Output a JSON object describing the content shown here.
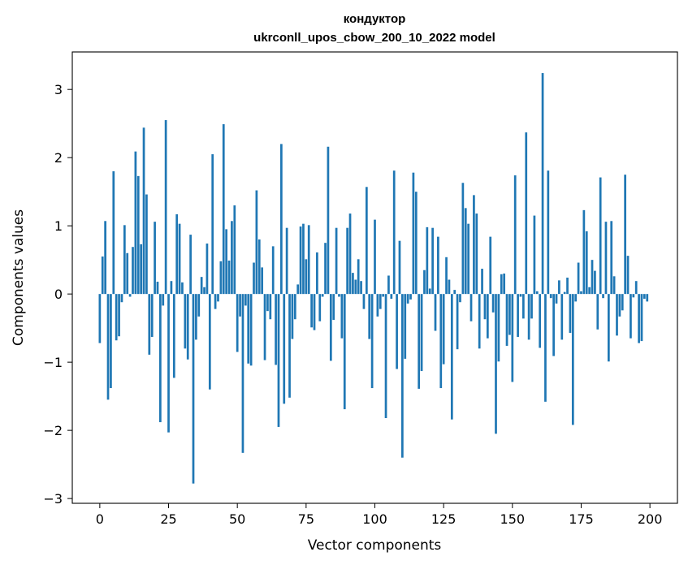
{
  "chart_data": {
    "type": "bar",
    "title": "кондуктор",
    "subtitle": "ukrconll_upos_cbow_200_10_2022 model",
    "xlabel": "Vector components",
    "ylabel": "Components values",
    "xlim": [
      -10,
      210
    ],
    "ylim": [
      -3.07,
      3.55
    ],
    "xticks": [
      0,
      25,
      50,
      75,
      100,
      125,
      150,
      175,
      200
    ],
    "xtick_labels": [
      "0",
      "25",
      "50",
      "75",
      "100",
      "125",
      "150",
      "175",
      "200"
    ],
    "yticks": [
      -3,
      -2,
      -1,
      0,
      1,
      2,
      3
    ],
    "ytick_labels": [
      "−3",
      "−2",
      "−1",
      "0",
      "1",
      "2",
      "3"
    ],
    "bar_color": "#1f77b4",
    "grid": false,
    "values": [
      -0.72,
      0.55,
      1.07,
      -1.55,
      -1.38,
      1.8,
      -0.68,
      -0.62,
      -0.12,
      1.01,
      0.6,
      -0.04,
      0.69,
      2.09,
      1.73,
      0.73,
      2.44,
      1.46,
      -0.89,
      -0.63,
      1.06,
      0.18,
      -1.88,
      -0.17,
      2.55,
      -2.03,
      0.19,
      -1.23,
      1.17,
      1.03,
      0.17,
      -0.8,
      -0.96,
      0.87,
      -2.78,
      -0.67,
      -0.33,
      0.25,
      0.1,
      0.74,
      -1.4,
      2.05,
      -0.22,
      -0.11,
      0.48,
      2.49,
      0.95,
      0.49,
      1.07,
      1.3,
      -0.85,
      -0.33,
      -2.33,
      -0.17,
      -1.02,
      -1.05,
      0.46,
      1.52,
      0.8,
      0.39,
      -0.97,
      -0.25,
      -0.37,
      0.7,
      -1.04,
      -1.95,
      2.2,
      -1.61,
      0.97,
      -1.52,
      -0.66,
      -0.37,
      0.14,
      0.99,
      1.03,
      0.51,
      1.01,
      -0.49,
      -0.53,
      0.61,
      -0.4,
      -0.04,
      0.75,
      2.16,
      -0.98,
      -0.38,
      0.97,
      -0.04,
      -0.65,
      -1.69,
      0.97,
      1.18,
      0.31,
      0.21,
      0.51,
      0.19,
      -0.22,
      1.57,
      -0.66,
      -1.38,
      1.09,
      -0.33,
      -0.22,
      -0.04,
      -1.82,
      0.27,
      -0.07,
      1.81,
      -1.1,
      0.78,
      -2.4,
      -0.95,
      -0.14,
      -0.08,
      1.78,
      1.5,
      -1.39,
      -1.13,
      0.35,
      0.98,
      0.08,
      0.97,
      -0.54,
      0.84,
      -1.38,
      -1.03,
      0.54,
      0.21,
      -1.84,
      0.06,
      -0.81,
      -0.12,
      1.63,
      1.26,
      1.03,
      -0.4,
      1.45,
      1.18,
      -0.8,
      0.37,
      -0.37,
      -0.65,
      0.84,
      -0.27,
      -2.05,
      -0.99,
      0.29,
      0.3,
      -0.76,
      -0.6,
      -1.29,
      1.74,
      -0.63,
      -0.04,
      -0.36,
      2.37,
      -0.67,
      -0.36,
      1.15,
      0.04,
      -0.79,
      3.24,
      -1.58,
      1.81,
      -0.06,
      -0.91,
      -0.14,
      0.2,
      -0.67,
      0.03,
      0.24,
      -0.57,
      -1.92,
      -0.11,
      0.46,
      0.04,
      1.23,
      0.92,
      0.1,
      0.5,
      0.34,
      -0.52,
      1.71,
      -0.06,
      1.06,
      -0.99,
      1.07,
      0.26,
      -0.61,
      -0.33,
      -0.24,
      1.75,
      0.56,
      -0.65,
      -0.05,
      0.19,
      -0.72,
      -0.69,
      -0.07,
      -0.11
    ]
  }
}
